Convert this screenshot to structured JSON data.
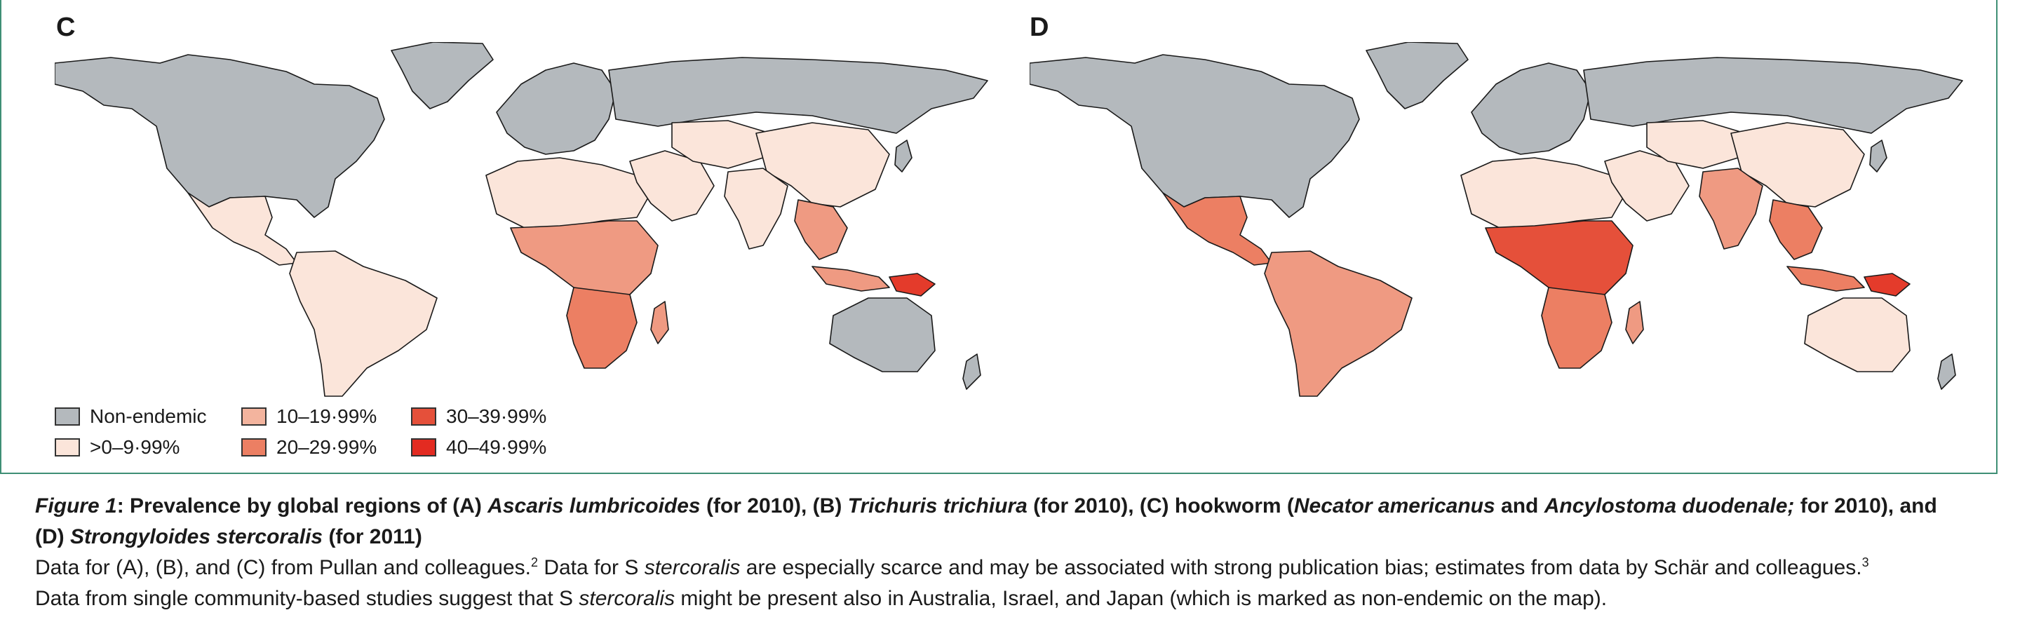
{
  "panels": [
    {
      "letter": "C",
      "regions": {
        "north_america": "#b4b9bd",
        "greenland": "#b4b9bd",
        "central_america": "#fbe5da",
        "south_america": "#fbe5da",
        "europe": "#b4b9bd",
        "russia": "#b4b9bd",
        "north_africa": "#fbe5da",
        "subsaharan_africa": "#ef9a82",
        "southern_africa": "#ec7f63",
        "middle_east": "#fbe5da",
        "central_asia": "#fbe5da",
        "china": "#fbe5da",
        "india": "#fbe5da",
        "southeast_asia": "#ef9a82",
        "indonesia": "#ef9a82",
        "new_guinea": "#e43b2b",
        "australia": "#b4b9bd",
        "madagascar": "#ef9a82",
        "japan": "#b4b9bd",
        "new_zealand": "#b4b9bd"
      }
    },
    {
      "letter": "D",
      "regions": {
        "north_america": "#b4b9bd",
        "greenland": "#b4b9bd",
        "central_america": "#ec7f63",
        "south_america": "#ef9a82",
        "europe": "#b4b9bd",
        "russia": "#b4b9bd",
        "north_africa": "#fbe5da",
        "subsaharan_africa": "#e5503a",
        "southern_africa": "#ec7f63",
        "middle_east": "#fbe5da",
        "central_asia": "#fbe5da",
        "china": "#fbe5da",
        "india": "#ef9a82",
        "southeast_asia": "#ec7f63",
        "indonesia": "#ec7f63",
        "new_guinea": "#e43b2b",
        "australia": "#fbe5da",
        "madagascar": "#ef9a82",
        "japan": "#b4b9bd",
        "new_zealand": "#b4b9bd"
      }
    }
  ],
  "legend": [
    {
      "label": "Non-endemic",
      "color": "#b4b9bd"
    },
    {
      "label": ">0–9·99%",
      "color": "#fbe5da"
    },
    {
      "label": "10–19·99%",
      "color": "#f3b49e"
    },
    {
      "label": "20–29·99%",
      "color": "#ec7f63"
    },
    {
      "label": "30–39·99%",
      "color": "#e5503a"
    },
    {
      "label": "40–49·99%",
      "color": "#e32b21"
    }
  ],
  "caption": {
    "fig_label": "Figure 1",
    "title_a": ": Prevalence by global regions of (A) ",
    "ascaris": "Ascaris lumbricoides",
    "title_b": " (for 2010), (B) ",
    "trichuris": "Trichuris trichiura",
    "title_c": " (for 2010), (C) hookworm (",
    "necator": "Necator americanus",
    "title_d": " and ",
    "ancylostoma": "Ancylostoma duodenale;",
    "title_e": " for 2010), and",
    "title2_a": "(D) ",
    "strongyloides": "Strongyloides stercoralis",
    "title2_b": " (for 2011)",
    "body1_a": "Data for (A), (B), and (C) from Pullan and colleagues.",
    "ref2": "2",
    "body1_b": " Data for S ",
    "stercoralis1": "stercoralis",
    "body1_c": " are especially scarce and may be associated with strong publication bias; estimates from data by Schär and colleagues.",
    "ref3": "3",
    "body2_a": "Data from single community-based studies suggest that S ",
    "stercoralis2": "stercoralis",
    "body2_b": " might be present also in Australia, Israel, and Japan (which is marked as non-endemic on the map)."
  }
}
